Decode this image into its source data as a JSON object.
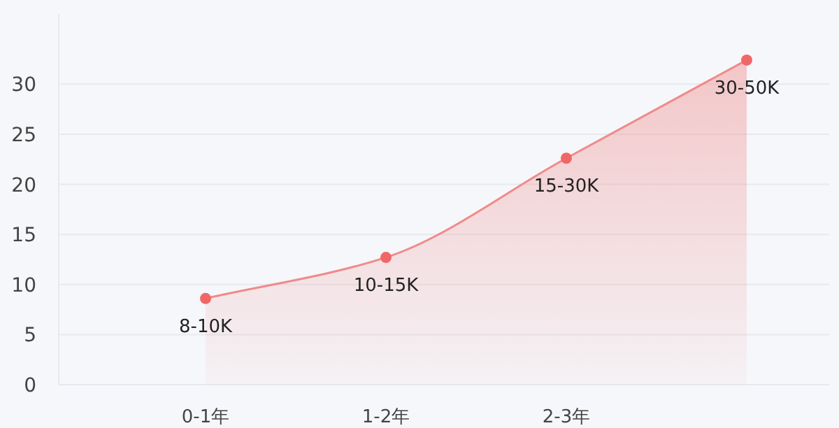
{
  "chart_data": {
    "type": "area",
    "categories": [
      "0-1年",
      "1-2年",
      "2-3年",
      null
    ],
    "ylim": [
      0,
      37
    ],
    "yticks": [
      0,
      5,
      10,
      15,
      20,
      25,
      30
    ],
    "grid": "y",
    "marker": "circle",
    "series": [
      {
        "color": "#f08a8a",
        "values": [
          8.6,
          12.7,
          22.6,
          32.4
        ],
        "value_labels": [
          "8-10K",
          "10-15K",
          "15-30K",
          "30-50K"
        ]
      }
    ]
  }
}
